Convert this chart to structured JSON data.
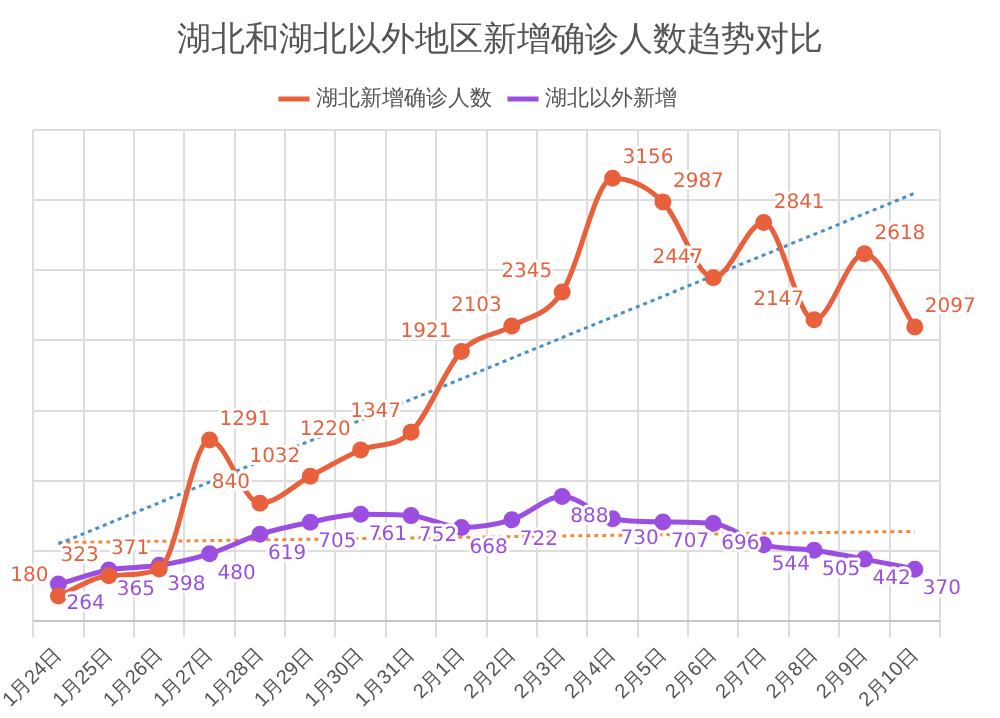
{
  "chart_data": {
    "type": "line",
    "title": "湖北和湖北以外地区新增确诊人数趋势对比",
    "categories": [
      "1月24日",
      "1月25日",
      "1月26日",
      "1月27日",
      "1月28日",
      "1月29日",
      "1月30日",
      "1月31日",
      "2月1日",
      "2月2日",
      "2月3日",
      "2月4日",
      "2月5日",
      "2月6日",
      "2月7日",
      "2月8日",
      "2月9日",
      "2月10日"
    ],
    "series": [
      {
        "name": "湖北新增确诊人数",
        "color": "#e8603c",
        "values": [
          180,
          323,
          371,
          1291,
          840,
          1032,
          1220,
          1347,
          1921,
          2103,
          2345,
          3156,
          2987,
          2447,
          2841,
          2147,
          2618,
          2097
        ],
        "data_labels": true
      },
      {
        "name": "湖北以外新增",
        "color": "#9b4ee0",
        "values": [
          264,
          365,
          398,
          480,
          619,
          705,
          761,
          752,
          668,
          722,
          888,
          730,
          707,
          696,
          544,
          505,
          442,
          370
        ],
        "data_labels": true
      },
      {
        "type": "line",
        "color": "#4a90c8",
        "line_style": "dotted",
        "marker": "none",
        "x": [
          "1月24日",
          "2月10日"
        ],
        "values": [
          550,
          3050
        ]
      },
      {
        "type": "line",
        "color": "#f08a3c",
        "line_style": "dotted",
        "marker": "none",
        "x": [
          "1月24日",
          "2月10日"
        ],
        "values": [
          560,
          640
        ]
      }
    ],
    "ylim": [
      0,
      3500
    ],
    "yticks": [
      0,
      500,
      1000,
      1500,
      2000,
      2500,
      3000,
      3500
    ],
    "tick_labels": "x",
    "grid": true,
    "legend": "top",
    "marker": "circle",
    "line_style": "solid"
  }
}
